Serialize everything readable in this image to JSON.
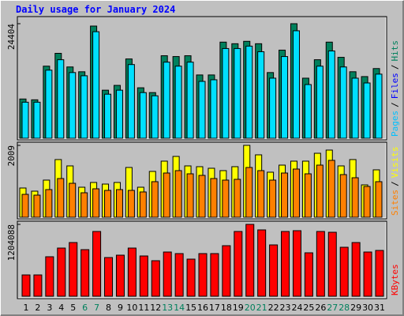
{
  "chart_data": [
    {
      "type": "bar",
      "title": "Daily usage for January 2024",
      "ylim": [
        0,
        24404
      ],
      "yticks": [
        24404
      ],
      "legend": [
        {
          "name": "Pages",
          "color": "#00C0FF"
        },
        {
          "name": "Files",
          "color": "#0000FF"
        },
        {
          "name": "Hits",
          "color": "#00805C"
        }
      ],
      "legend_separator": "/",
      "series": [
        {
          "color": "#00805C",
          "values": [
            8364,
            8193,
            15361,
            18092,
            15190,
            14167,
            23900,
            10241,
            11265,
            16897,
            10753,
            9729,
            17580,
            17409,
            17580,
            13484,
            13484,
            20481,
            20140,
            20652,
            20140,
            13996,
            18775,
            24404,
            12800,
            16730,
            20480,
            17240,
            14170,
            13140,
            14850
          ]
        },
        {
          "color": "#00E0FF",
          "values": [
            7681,
            7681,
            14508,
            16727,
            13996,
            13313,
            22700,
            9388,
            10241,
            15702,
            9729,
            9046,
            16214,
            15361,
            16214,
            12118,
            12459,
            19116,
            19116,
            19628,
            18433,
            12801,
            17409,
            22900,
            11440,
            15360,
            18600,
            15190,
            12800,
            11780,
            13660
          ]
        }
      ]
    },
    {
      "type": "bar",
      "ylim": [
        0,
        2009
      ],
      "yticks": [
        2009
      ],
      "legend": [
        {
          "name": "Sites",
          "color": "#FF8000"
        },
        {
          "name": "Visits",
          "color": "#FFFF00"
        }
      ],
      "legend_separator": "/",
      "series": [
        {
          "color": "#FFFF00",
          "values": [
            817,
            729,
            1038,
            1612,
            1435,
            839,
            972,
            927,
            972,
            1391,
            839,
            1281,
            1568,
            1700,
            1435,
            1413,
            1369,
            1303,
            1413,
            2009,
            1744,
            1259,
            1457,
            1568,
            1568,
            1788,
            1877,
            1435,
            1612,
            905,
            1325
          ]
        },
        {
          "color": "#FF8000",
          "values": [
            640,
            618,
            773,
            1082,
            949,
            684,
            795,
            751,
            773,
            751,
            707,
            994,
            1236,
            1303,
            1214,
            1170,
            1082,
            1038,
            1060,
            1391,
            1303,
            1038,
            1236,
            1347,
            1214,
            1457,
            1590,
            1192,
            1104,
            861,
            994
          ]
        }
      ]
    },
    {
      "type": "bar",
      "ylim": [
        0,
        1204088
      ],
      "yticks": [
        1204088
      ],
      "legend": [
        {
          "name": "KBytes",
          "color": "#FF0000"
        }
      ],
      "series": [
        {
          "color": "#FF0000",
          "values": [
            357264,
            357264,
            661600,
            807152,
            899776,
            780688,
            1085024,
            648368,
            688064,
            807152,
            674832,
            595440,
            740992,
            714528,
            621904,
            714528,
            714528,
            846848,
            1085024,
            1204088,
            1111488,
            860080,
            1085024,
            1098256,
            727760,
            1085024,
            1071792,
            820384,
            899776,
            740992,
            767456
          ]
        }
      ],
      "categories": [
        "1",
        "2",
        "3",
        "4",
        "5",
        "6",
        "7",
        "8",
        "9",
        "10",
        "11",
        "12",
        "13",
        "14",
        "15",
        "16",
        "17",
        "18",
        "19",
        "20",
        "21",
        "22",
        "23",
        "24",
        "25",
        "26",
        "27",
        "28",
        "29",
        "30",
        "31"
      ],
      "category_colors": [
        "#000000",
        "#000000",
        "#000000",
        "#000000",
        "#000000",
        "#00805C",
        "#00805C",
        "#000000",
        "#000000",
        "#000000",
        "#000000",
        "#000000",
        "#00805C",
        "#00805C",
        "#000000",
        "#000000",
        "#000000",
        "#000000",
        "#000000",
        "#00805C",
        "#00805C",
        "#000000",
        "#000000",
        "#000000",
        "#000000",
        "#000000",
        "#00805C",
        "#00805C",
        "#000000",
        "#000000",
        "#000000"
      ]
    }
  ]
}
